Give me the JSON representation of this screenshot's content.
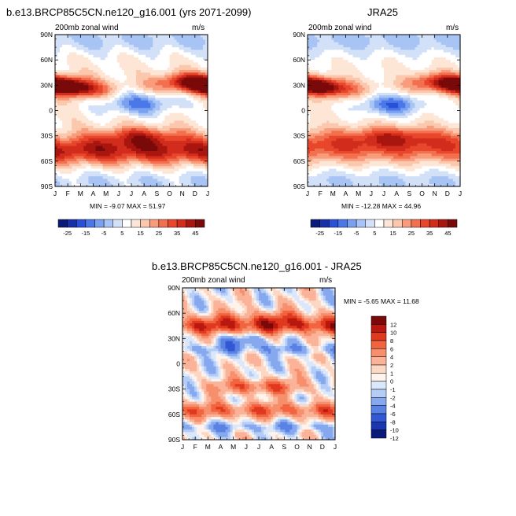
{
  "panels": {
    "model": {
      "title": "b.e13.BRCP85C5CN.ne120_g16.001 (yrs 2071-2099)",
      "left_label": "200mb zonal wind",
      "right_label": "m/s",
      "stats": "MIN =  -9.07 MAX =  51.97"
    },
    "obs": {
      "title": "JRA25",
      "left_label": "200mb zonal wind",
      "right_label": "m/s",
      "stats": "MIN =  -12.28 MAX =  44.96"
    },
    "diff": {
      "title": "b.e13.BRCP85C5CN.ne120_g16.001 - JRA25",
      "left_label": "200mb zonal wind",
      "right_label": "m/s",
      "stats": "MIN =  -5.65 MAX =  11.68"
    }
  },
  "chart_data": [
    {
      "type": "heatmap",
      "title": "b.e13.BRCP85C5CN.ne120_g16.001 (yrs 2071-2099)",
      "x_ticks": [
        "J",
        "F",
        "M",
        "A",
        "M",
        "J",
        "J",
        "A",
        "S",
        "O",
        "N",
        "D",
        "J"
      ],
      "y_ticks": [
        "90N",
        "60N",
        "30N",
        "0",
        "30S",
        "60S",
        "90S"
      ],
      "ylim": [
        -90,
        90
      ],
      "min": -9.07,
      "max": 51.97,
      "colorbar_labels": [
        "-25",
        "-15",
        "-5",
        "5",
        "15",
        "25",
        "35",
        "45"
      ]
    },
    {
      "type": "heatmap",
      "title": "JRA25",
      "x_ticks": [
        "J",
        "F",
        "M",
        "A",
        "M",
        "J",
        "J",
        "A",
        "S",
        "O",
        "N",
        "D",
        "J"
      ],
      "y_ticks": [
        "90N",
        "60N",
        "30N",
        "0",
        "30S",
        "60S",
        "90S"
      ],
      "ylim": [
        -90,
        90
      ],
      "min": -12.28,
      "max": 44.96,
      "colorbar_labels": [
        "-25",
        "-15",
        "-5",
        "5",
        "15",
        "25",
        "35",
        "45"
      ]
    },
    {
      "type": "heatmap",
      "title": "b.e13.BRCP85C5CN.ne120_g16.001 - JRA25",
      "x_ticks": [
        "J",
        "F",
        "M",
        "A",
        "M",
        "J",
        "J",
        "A",
        "S",
        "O",
        "N",
        "D",
        "J"
      ],
      "y_ticks": [
        "90N",
        "60N",
        "30N",
        "0",
        "30S",
        "60S",
        "90S"
      ],
      "ylim": [
        -90,
        90
      ],
      "min": -5.65,
      "max": 11.68,
      "colorbar_labels": [
        "12",
        "10",
        "8",
        "6",
        "4",
        "2",
        "1",
        "0",
        "-1",
        "-2",
        "-4",
        "-6",
        "-8",
        "-10",
        "-12"
      ]
    }
  ],
  "colorbars": {
    "main_colors": [
      "#0a1a7a",
      "#1530a8",
      "#2a50d8",
      "#4a78e8",
      "#7aa0f0",
      "#a8c4f4",
      "#d2e0f8",
      "#ffffff",
      "#fde6d6",
      "#fbc8ae",
      "#f89c7c",
      "#f2704f",
      "#e8472c",
      "#d22c1c",
      "#a8160f",
      "#7a0a0a"
    ],
    "diff_colors": [
      "#7a0a0a",
      "#b8180f",
      "#e0391f",
      "#f2643f",
      "#f78e6c",
      "#fab398",
      "#fcd7c4",
      "#fff3ec",
      "#dbe7fb",
      "#b4ccf6",
      "#86a8ee",
      "#5a82e4",
      "#3258d4",
      "#1a36b0",
      "#0a1a7a"
    ]
  }
}
